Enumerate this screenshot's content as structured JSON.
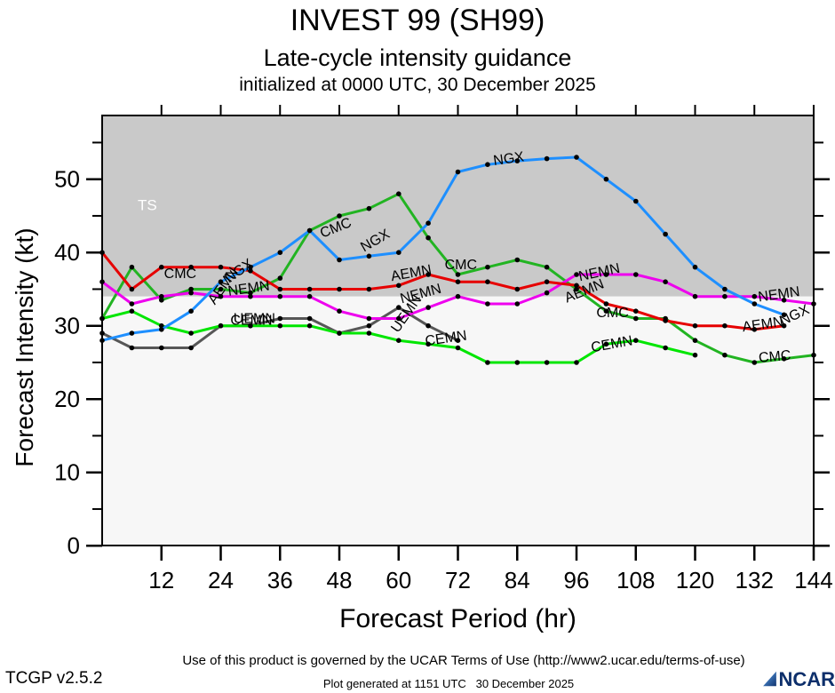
{
  "page": {
    "title1": "INVEST 99 (SH99)",
    "title2": "Late-cycle intensity guidance",
    "title3": "initialized at 0000 UTC, 30 December 2025",
    "footer_terms": "Use of this product is governed by the UCAR Terms of Use (http://www2.ucar.edu/terms-of-use)",
    "footer_version": "TCGP v2.5.2",
    "footer_generated": "Plot generated at 1151 UTC   30 December 2025",
    "logo_text": "NCAR"
  },
  "chart_data": {
    "type": "line",
    "title": "INVEST 99 (SH99) — Late-cycle intensity guidance",
    "xlabel": "Forecast Period (hr)",
    "ylabel": "Forecast Intensity (kt)",
    "xlim": [
      0,
      144
    ],
    "ylim": [
      0,
      58.7
    ],
    "xticks": [
      12,
      24,
      36,
      48,
      60,
      72,
      84,
      96,
      108,
      120,
      132,
      144
    ],
    "yticks_major": [
      0,
      10,
      20,
      30,
      40,
      50
    ],
    "yticks_minor": [
      5,
      15,
      25,
      35,
      45,
      55
    ],
    "grid": false,
    "ts_threshold": 34,
    "ts_annotation": {
      "text": "TS",
      "hr": 7.2,
      "kt": 45.8,
      "color": "#ffffff"
    },
    "region_colors": {
      "above_threshold": "#c9c9c9",
      "below_threshold": "#f7f7f7"
    },
    "marker_color": "#000000",
    "series": [
      {
        "name": "UEMN",
        "color": "#575757",
        "points": [
          [
            0,
            29
          ],
          [
            6,
            27
          ],
          [
            12,
            27
          ],
          [
            18,
            27
          ],
          [
            24,
            30
          ],
          [
            30,
            30
          ],
          [
            36,
            31
          ],
          [
            42,
            31
          ],
          [
            48,
            29
          ],
          [
            54,
            30
          ],
          [
            60,
            32.5
          ],
          [
            66,
            30
          ],
          [
            72,
            28
          ]
        ]
      },
      {
        "name": "CEMN",
        "color": "#00e600",
        "points": [
          [
            0,
            31
          ],
          [
            6,
            32
          ],
          [
            12,
            30
          ],
          [
            18,
            29
          ],
          [
            24,
            30
          ],
          [
            30,
            30
          ],
          [
            36,
            30
          ],
          [
            42,
            30
          ],
          [
            48,
            29
          ],
          [
            54,
            29
          ],
          [
            60,
            28
          ],
          [
            66,
            27.5
          ],
          [
            72,
            27
          ],
          [
            78,
            25
          ],
          [
            84,
            25
          ],
          [
            90,
            25
          ],
          [
            96,
            25
          ],
          [
            102,
            27.5
          ],
          [
            108,
            28
          ],
          [
            114,
            27
          ],
          [
            120,
            26
          ]
        ]
      },
      {
        "name": "CMC",
        "color": "#22b422",
        "points": [
          [
            0,
            31
          ],
          [
            6,
            38
          ],
          [
            12,
            33.5
          ],
          [
            18,
            35
          ],
          [
            24,
            35
          ],
          [
            30,
            34.5
          ],
          [
            36,
            36.5
          ],
          [
            42,
            43
          ],
          [
            48,
            45
          ],
          [
            54,
            46
          ],
          [
            60,
            48
          ],
          [
            66,
            42
          ],
          [
            72,
            37
          ],
          [
            78,
            38
          ],
          [
            84,
            39
          ],
          [
            90,
            38
          ],
          [
            96,
            35
          ],
          [
            102,
            32
          ],
          [
            108,
            31
          ],
          [
            114,
            31
          ],
          [
            120,
            28
          ],
          [
            126,
            26
          ],
          [
            132,
            25
          ],
          [
            138,
            25.5
          ],
          [
            144,
            26
          ]
        ]
      },
      {
        "name": "NEMN",
        "color": "#ee00ee",
        "points": [
          [
            0,
            36
          ],
          [
            6,
            33
          ],
          [
            12,
            34
          ],
          [
            18,
            34.5
          ],
          [
            24,
            34
          ],
          [
            30,
            34
          ],
          [
            36,
            34
          ],
          [
            42,
            34
          ],
          [
            48,
            32
          ],
          [
            54,
            31
          ],
          [
            60,
            31
          ],
          [
            66,
            32.5
          ],
          [
            72,
            34
          ],
          [
            78,
            33
          ],
          [
            84,
            33
          ],
          [
            90,
            34.5
          ],
          [
            96,
            37
          ],
          [
            102,
            37
          ],
          [
            108,
            37
          ],
          [
            114,
            36
          ],
          [
            120,
            34
          ],
          [
            126,
            34
          ],
          [
            132,
            34
          ],
          [
            138,
            33.5
          ],
          [
            144,
            33
          ]
        ]
      },
      {
        "name": "AEMN",
        "color": "#e60000",
        "points": [
          [
            0,
            40
          ],
          [
            6,
            35
          ],
          [
            12,
            38
          ],
          [
            18,
            38
          ],
          [
            24,
            38
          ],
          [
            30,
            37.5
          ],
          [
            36,
            35
          ],
          [
            42,
            35
          ],
          [
            48,
            35
          ],
          [
            54,
            35
          ],
          [
            60,
            35.5
          ],
          [
            66,
            37
          ],
          [
            72,
            36
          ],
          [
            78,
            36
          ],
          [
            84,
            35
          ],
          [
            90,
            36
          ],
          [
            96,
            35.5
          ],
          [
            102,
            33
          ],
          [
            108,
            32
          ],
          [
            114,
            30.7
          ],
          [
            120,
            30
          ],
          [
            126,
            30
          ],
          [
            132,
            29.5
          ],
          [
            138,
            30
          ]
        ]
      },
      {
        "name": "NGX",
        "color": "#1e8fff",
        "points": [
          [
            0,
            28
          ],
          [
            6,
            29
          ],
          [
            12,
            29.5
          ],
          [
            18,
            32
          ],
          [
            24,
            36
          ],
          [
            30,
            38
          ],
          [
            36,
            40
          ],
          [
            42,
            43
          ],
          [
            48,
            39
          ],
          [
            54,
            39.5
          ],
          [
            60,
            40
          ],
          [
            66,
            44
          ],
          [
            72,
            51
          ],
          [
            78,
            52
          ],
          [
            84,
            52.5
          ],
          [
            90,
            52.8
          ],
          [
            96,
            53
          ],
          [
            102,
            50
          ],
          [
            108,
            47
          ],
          [
            114,
            42.5
          ],
          [
            120,
            38
          ],
          [
            126,
            35
          ],
          [
            132,
            33
          ],
          [
            138,
            31.5
          ]
        ]
      }
    ],
    "line_labels": [
      {
        "text": "CMC",
        "hr": 15.8,
        "kt": 36.5,
        "rot": 0
      },
      {
        "text": "NGX",
        "hr": 28.2,
        "kt": 37.0,
        "rot": -35
      },
      {
        "text": "AEMN",
        "hr": 25.2,
        "kt": 35.1,
        "rot": -55
      },
      {
        "text": "NEMN",
        "hr": 29.8,
        "kt": 34.5,
        "rot": -8
      },
      {
        "text": "UEMN",
        "hr": 30.8,
        "kt": 30.4,
        "rot": 0
      },
      {
        "text": "CEMN",
        "hr": 30.2,
        "kt": 30.15,
        "rot": 0
      },
      {
        "text": "CMC",
        "hr": 47.6,
        "kt": 42.8,
        "rot": -22
      },
      {
        "text": "NGX",
        "hr": 55.7,
        "kt": 41.1,
        "rot": -30
      },
      {
        "text": "AEMN",
        "hr": 62.7,
        "kt": 36.6,
        "rot": -10
      },
      {
        "text": "UEMN",
        "hr": 62.3,
        "kt": 31.3,
        "rot": -55
      },
      {
        "text": "NEMN",
        "hr": 64.7,
        "kt": 33.8,
        "rot": -15
      },
      {
        "text": "CEMN",
        "hr": 69.7,
        "kt": 27.7,
        "rot": -8
      },
      {
        "text": "CMC",
        "hr": 72.6,
        "kt": 37.7,
        "rot": 0
      },
      {
        "text": "NGX",
        "hr": 82.4,
        "kt": 52.2,
        "rot": -8
      },
      {
        "text": "NEMN",
        "hr": 100.8,
        "kt": 36.7,
        "rot": -12
      },
      {
        "text": "AEMN",
        "hr": 97.9,
        "kt": 34.2,
        "rot": -22
      },
      {
        "text": "CMC",
        "hr": 103.3,
        "kt": 31.2,
        "rot": 0
      },
      {
        "text": "CEMN",
        "hr": 103.3,
        "kt": 26.9,
        "rot": -10
      },
      {
        "text": "NEMN",
        "hr": 137.1,
        "kt": 33.7,
        "rot": -8
      },
      {
        "text": "NGX",
        "hr": 140.5,
        "kt": 30.9,
        "rot": -25
      },
      {
        "text": "AEMN",
        "hr": 133.8,
        "kt": 29.6,
        "rot": -8
      },
      {
        "text": "CMC",
        "hr": 136.2,
        "kt": 25.2,
        "rot": -5
      }
    ]
  }
}
